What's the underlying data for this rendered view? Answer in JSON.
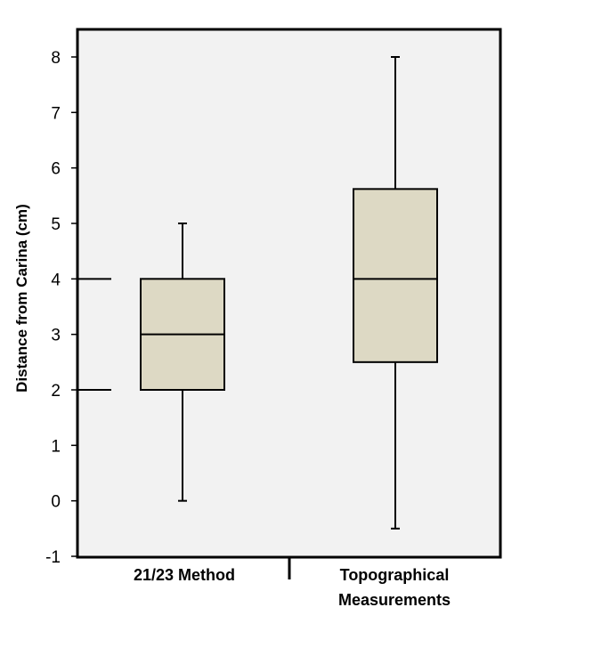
{
  "chart_data": {
    "type": "box",
    "title": "",
    "xlabel": "",
    "ylabel": "Distance from Carina (cm)",
    "ylim": [
      -1,
      8
    ],
    "yticks": [
      "8",
      "7",
      "6",
      "5",
      "4",
      "3",
      "2",
      "1",
      "0",
      "-1"
    ],
    "ytick_values": [
      8,
      7,
      6,
      5,
      4,
      3,
      2,
      1,
      0,
      -1
    ],
    "categories": [
      {
        "label_lines": [
          "21/23 Method"
        ]
      },
      {
        "label_lines": [
          "Topographical",
          "Measurements"
        ]
      }
    ],
    "series": [
      {
        "name": "21/23 Method",
        "min": 0,
        "q1": 2,
        "median": 3,
        "q3": 4,
        "max": 5
      },
      {
        "name": "Topographical Measurements",
        "min": -0.5,
        "q1": 2.5,
        "median": 4,
        "q3": 5.62,
        "max": 8
      }
    ],
    "reference_marks": [
      4,
      2
    ],
    "grid": false,
    "colors": {
      "box_fill": "#ddd9c4",
      "plot_bg": "#f2f2f2",
      "line": "#000000"
    }
  }
}
